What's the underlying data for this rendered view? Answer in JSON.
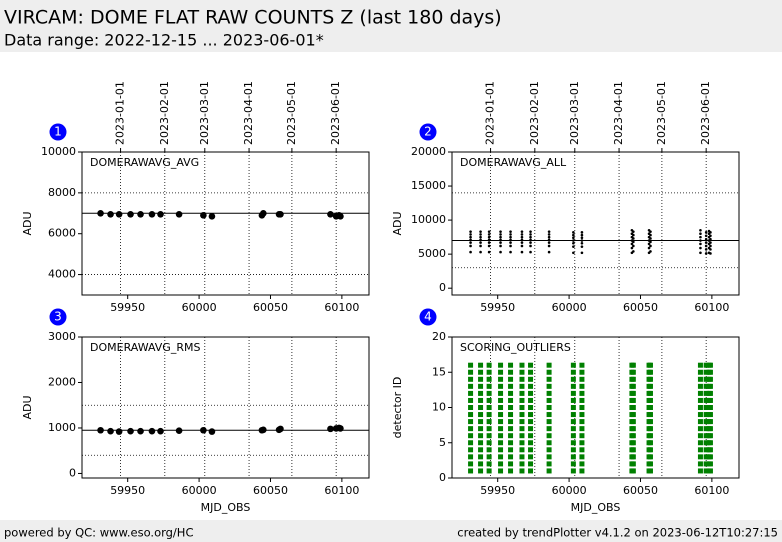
{
  "header": {
    "title": "VIRCAM: DOME FLAT RAW COUNTS Z (last 180 days)",
    "subtitle": "Data range: 2022-12-15 ... 2023-06-01*"
  },
  "footer": {
    "left": "powered by QC: www.eso.org/HC",
    "right": "created by trendPlotter v4.1.2 on 2023-06-12T10:27:15"
  },
  "date_ticks": [
    {
      "value": 59945,
      "label": "2023-01-01"
    },
    {
      "value": 59976,
      "label": "2023-02-01"
    },
    {
      "value": 60004,
      "label": "2023-03-01"
    },
    {
      "value": 60035,
      "label": "2023-04-01"
    },
    {
      "value": 60065,
      "label": "2023-05-01"
    },
    {
      "value": 60096,
      "label": "2023-06-01"
    }
  ],
  "chart_data": [
    {
      "type": "scatter",
      "label": "1",
      "title": "DOMERAWAVG_AVG",
      "ylabel": "ADU",
      "show_date_labels": true,
      "color": "#000000",
      "xlim": [
        59918,
        60119
      ],
      "xticks": [
        59950,
        60000,
        60050,
        60100
      ],
      "ylim": [
        3000,
        10000
      ],
      "yticks": [
        4000,
        6000,
        8000,
        10000
      ],
      "reference": 7000,
      "thresholds": [
        8000,
        4000
      ],
      "x": [
        59931,
        59938,
        59944,
        59952,
        59959,
        59967,
        59973,
        59986,
        60003,
        60009,
        60044,
        60045,
        60056,
        60057,
        60092,
        60096,
        60098,
        60099
      ],
      "values": [
        7000,
        6950,
        6950,
        6950,
        6950,
        6950,
        6950,
        6950,
        6900,
        6850,
        6900,
        7000,
        6950,
        6950,
        6950,
        6850,
        6900,
        6850
      ]
    },
    {
      "type": "strip",
      "label": "2",
      "title": "DOMERAWAVG_ALL",
      "ylabel": "ADU",
      "show_date_labels": true,
      "color": "#000000",
      "xlim": [
        59918,
        60119
      ],
      "xticks": [
        59950,
        60000,
        60050,
        60100
      ],
      "ylim": [
        -1000,
        20000
      ],
      "yticks": [
        0,
        5000,
        10000,
        15000,
        20000
      ],
      "reference": 7000,
      "thresholds": [
        14000,
        3000
      ],
      "groups": [
        {
          "x": 59931,
          "values": [
            5300,
            6200,
            6700,
            7100,
            7500,
            7900,
            8300
          ]
        },
        {
          "x": 59938,
          "values": [
            5300,
            6200,
            6700,
            7100,
            7500,
            7900,
            8300
          ]
        },
        {
          "x": 59944,
          "values": [
            5300,
            6200,
            6700,
            7100,
            7500,
            7900,
            8300
          ]
        },
        {
          "x": 59952,
          "values": [
            5300,
            6200,
            6700,
            7100,
            7500,
            7900,
            8300
          ]
        },
        {
          "x": 59959,
          "values": [
            5300,
            6200,
            6700,
            7100,
            7500,
            7900,
            8300
          ]
        },
        {
          "x": 59967,
          "values": [
            5300,
            6200,
            6700,
            7100,
            7500,
            7900,
            8300
          ]
        },
        {
          "x": 59973,
          "values": [
            5300,
            6200,
            6700,
            7100,
            7500,
            7900,
            8300
          ]
        },
        {
          "x": 59986,
          "values": [
            5300,
            6200,
            6700,
            7100,
            7500,
            7900,
            8300
          ]
        },
        {
          "x": 60003,
          "values": [
            5200,
            6100,
            6600,
            7000,
            7400,
            7800,
            8200
          ]
        },
        {
          "x": 60009,
          "values": [
            5200,
            6100,
            6600,
            7000,
            7400,
            7800,
            8200
          ]
        },
        {
          "x": 60044,
          "values": [
            5200,
            5900,
            6500,
            7000,
            7500,
            8000,
            8500
          ]
        },
        {
          "x": 60045,
          "values": [
            5400,
            6200,
            6800,
            7300,
            7800,
            8300
          ]
        },
        {
          "x": 60056,
          "values": [
            5200,
            5900,
            6500,
            7000,
            7500,
            8000,
            8500
          ]
        },
        {
          "x": 60057,
          "values": [
            5400,
            6200,
            6800,
            7300,
            7800,
            8300
          ]
        },
        {
          "x": 60092,
          "values": [
            5200,
            5900,
            6500,
            7000,
            7500,
            8000,
            8500
          ]
        },
        {
          "x": 60096,
          "values": [
            5100,
            5700,
            6200,
            6700,
            7200,
            7700,
            8200
          ]
        },
        {
          "x": 60098,
          "values": [
            5200,
            5900,
            6500,
            7000,
            7500,
            8000,
            8400
          ]
        },
        {
          "x": 60099,
          "values": [
            5100,
            5700,
            6200,
            6700,
            7200,
            7700,
            8200
          ]
        }
      ]
    },
    {
      "type": "scatter",
      "label": "3",
      "title": "DOMERAWAVG_RMS",
      "ylabel": "ADU",
      "xlabel": "MJD_OBS",
      "show_date_labels": false,
      "color": "#000000",
      "xlim": [
        59918,
        60119
      ],
      "xticks": [
        59950,
        60000,
        60050,
        60100
      ],
      "ylim": [
        -100,
        3000
      ],
      "yticks": [
        0,
        1000,
        2000,
        3000
      ],
      "reference": 950,
      "thresholds": [
        1500,
        400
      ],
      "x": [
        59931,
        59938,
        59944,
        59952,
        59959,
        59967,
        59973,
        59986,
        60003,
        60009,
        60044,
        60045,
        60056,
        60057,
        60092,
        60096,
        60098,
        60099
      ],
      "values": [
        950,
        930,
        920,
        930,
        930,
        930,
        930,
        940,
        950,
        920,
        950,
        960,
        960,
        980,
        980,
        990,
        1000,
        990
      ]
    },
    {
      "type": "matrix",
      "label": "4",
      "title": "SCORING_OUTLIERS",
      "ylabel": "detector ID",
      "xlabel": "MJD_OBS",
      "show_date_labels": false,
      "color": "#008000",
      "xlim": [
        59918,
        60119
      ],
      "xticks": [
        59950,
        60000,
        60050,
        60100
      ],
      "ylim": [
        0,
        20
      ],
      "yticks": [
        0,
        5,
        10,
        15,
        20
      ],
      "x": [
        59931,
        59938,
        59944,
        59952,
        59959,
        59967,
        59973,
        59986,
        60003,
        60009,
        60044,
        60045,
        60056,
        60057,
        60092,
        60096,
        60098,
        60099
      ],
      "detectors": [
        1,
        2,
        3,
        4,
        5,
        6,
        7,
        8,
        9,
        10,
        11,
        12,
        13,
        14,
        15,
        16
      ]
    }
  ]
}
